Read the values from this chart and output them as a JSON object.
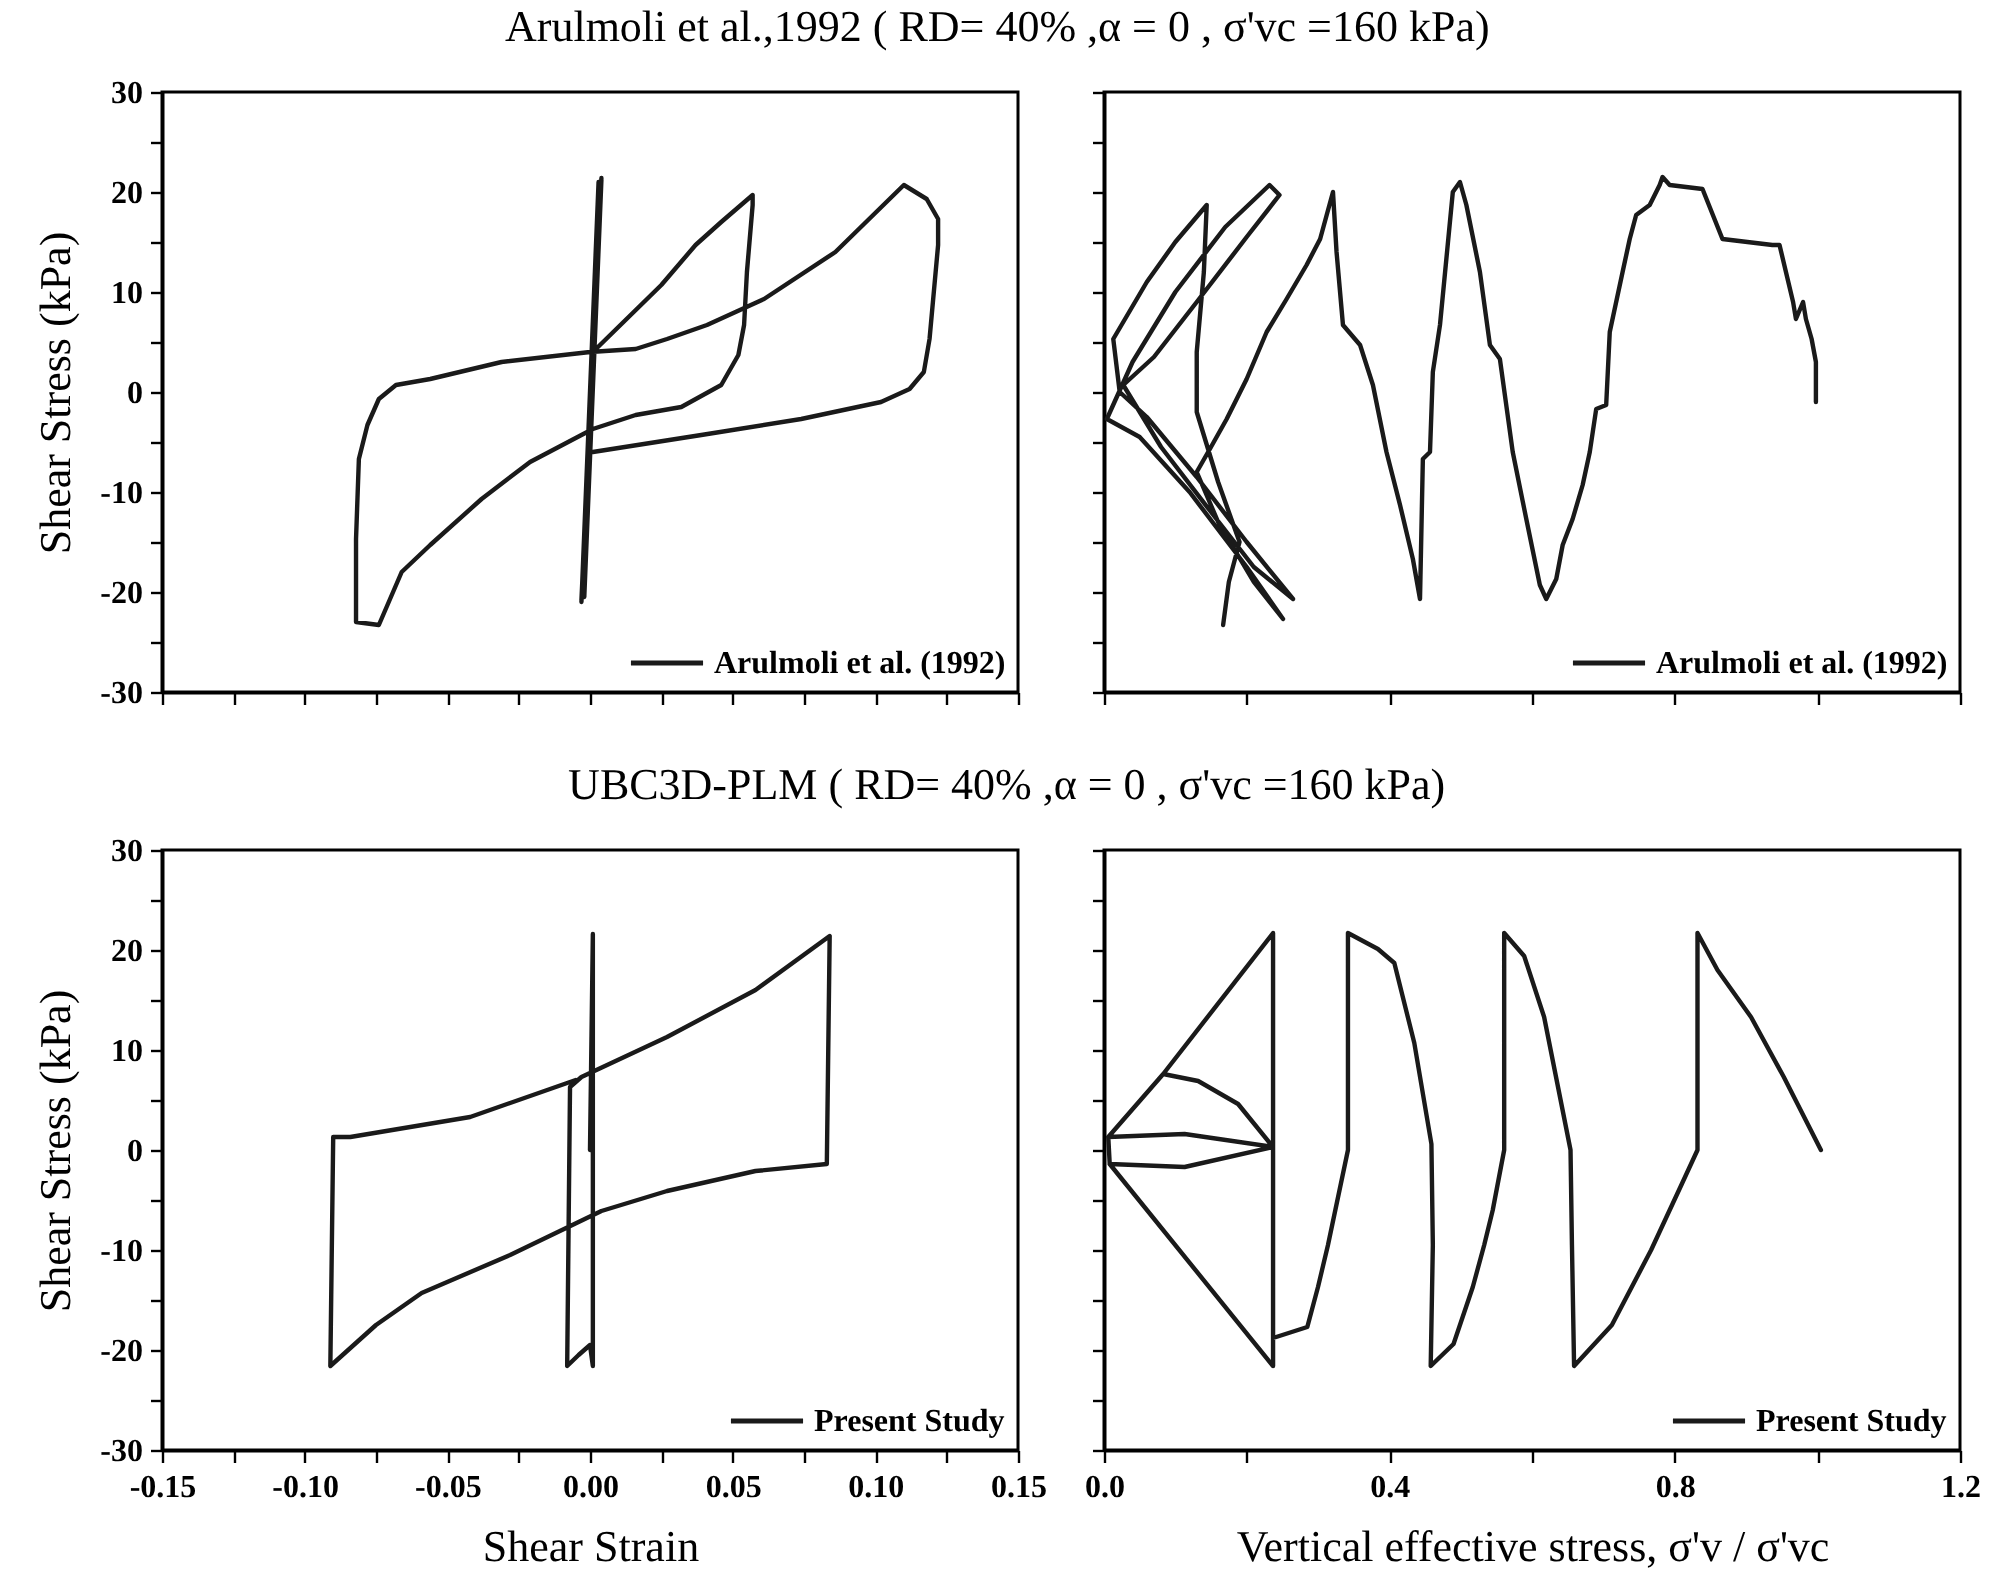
{
  "chart_data": [
    {
      "type": "line",
      "title": "Arulmoli et al.,1992 ( RD= 40% ,α = 0 , σ'vc =160 kPa)",
      "ylabel": "Shear Stress (kPa)",
      "xlim": [
        -0.15,
        0.15
      ],
      "xticks": [
        -0.15,
        -0.125,
        -0.1,
        -0.075,
        -0.05,
        -0.025,
        0,
        0.025,
        0.05,
        0.075,
        0.1,
        0.125,
        0.15
      ],
      "ylim": [
        -30,
        30
      ],
      "yticks": [
        -30,
        {
          "value": -25,
          "label": null
        },
        -20,
        {
          "value": -15,
          "label": null
        },
        -10,
        {
          "value": -5,
          "label": null
        },
        0,
        {
          "value": 5,
          "label": null
        },
        10,
        {
          "value": 15,
          "label": null
        },
        20,
        {
          "value": 25,
          "label": null
        },
        30
      ],
      "tick_labels": "y",
      "legend": "bottom right",
      "series": [
        {
          "name": "Arulmoli et al. (1992)",
          "color": "#1a1a1a",
          "x": [
            0,
            0.004,
            -0.003,
            0.003,
            -0.002,
            0.004,
            -0.003,
            0.001,
            0.025,
            0.037,
            0.046,
            0.057,
            0.057,
            0.055,
            0.054,
            0.052,
            0.046,
            0.032,
            0.016,
            0.001,
            -0.021,
            -0.038,
            -0.056,
            -0.066,
            -0.074,
            -0.082,
            -0.082,
            -0.081,
            -0.078,
            -0.074,
            -0.068,
            -0.056,
            -0.031,
            0,
            0.016,
            0.027,
            0.041,
            0.061,
            0.086,
            0.11,
            0.118,
            0.122,
            0.122,
            0.119,
            0.117,
            0.112,
            0.102,
            0.074,
            0.039,
            0.001
          ],
          "values": [
            0,
            21.4,
            -21,
            21,
            -20.5,
            21.2,
            -20.8,
            4,
            10.7,
            14.7,
            17,
            19.7,
            18.7,
            12,
            6.7,
            3.7,
            0.7,
            -1.5,
            -2.3,
            -3.7,
            -7,
            -10.7,
            -15.3,
            -18,
            -23.3,
            -23,
            -14.7,
            -6.7,
            -3.3,
            -0.7,
            0.7,
            1.3,
            3,
            4,
            4.3,
            5.3,
            6.7,
            9.3,
            14,
            20.7,
            19.3,
            17.3,
            14.7,
            5.3,
            2,
            0.3,
            -1,
            -2.7,
            -4.3,
            -6
          ]
        }
      ]
    },
    {
      "type": "line",
      "xlim": [
        0,
        1.2
      ],
      "xticks": [
        0,
        0.2,
        0.4,
        0.6,
        0.8,
        1.0,
        1.2
      ],
      "ylim": [
        -30,
        30
      ],
      "yticks": [
        -30,
        -25,
        -20,
        -15,
        -10,
        -5,
        0,
        5,
        10,
        15,
        20,
        25,
        30
      ],
      "tick_labels": false,
      "legend": "bottom right",
      "series": [
        {
          "name": "Arulmoli et al. (1992)",
          "color": "#1a1a1a",
          "x": [
            0.998,
            0.998,
            0.992,
            0.984,
            0.98,
            0.97,
            0.966,
            0.947,
            0.937,
            0.867,
            0.839,
            0.793,
            0.783,
            0.779,
            0.765,
            0.746,
            0.737,
            0.727,
            0.709,
            0.704,
            0.69,
            0.681,
            0.671,
            0.657,
            0.643,
            0.634,
            0.62,
            0.611,
            0.592,
            0.573,
            0.555,
            0.541,
            0.527,
            0.508,
            0.499,
            0.489,
            0.471,
            0.461,
            0.457,
            0.447,
            0.443,
            0.433,
            0.415,
            0.396,
            0.377,
            0.359,
            0.335,
            0.326,
            0.321,
            0.303,
            0.284,
            0.256,
            0.228,
            0.2,
            0.172,
            0.15,
            0.13,
            0.16,
            0.21,
            0.251,
            0.2,
            0.12,
            0.05,
            0.004,
            0.04,
            0.1,
            0.17,
            0.232,
            0.246,
            0.2,
            0.13,
            0.07,
            0.027,
            0.08,
            0.15,
            0.21,
            0.265,
            0.2,
            0.13,
            0.06,
            0.022,
            0.013,
            0.06,
            0.1,
            0.144,
            0.14,
            0.13,
            0.13,
            0.16,
            0.19,
            0.175,
            0.167
          ],
          "values": [
            -1,
            3,
            5.3,
            7.3,
            9,
            7.3,
            9,
            14.7,
            14.7,
            15.3,
            20.3,
            20.7,
            21.5,
            20.7,
            18.7,
            17.7,
            15.3,
            12,
            6,
            -1.3,
            -1.7,
            -6,
            -9.3,
            -12.7,
            -15.3,
            -18.7,
            -20.7,
            -19.3,
            -12.7,
            -6,
            3.3,
            4.7,
            12,
            18.7,
            21,
            20,
            6.7,
            2,
            -6,
            -6.7,
            -20.7,
            -16.7,
            -11.3,
            -6,
            0.7,
            4.7,
            6.7,
            14,
            20,
            15.3,
            12.7,
            9.3,
            6,
            1.3,
            -2.7,
            -5.5,
            -8,
            -13,
            -19,
            -22.7,
            -17.5,
            -10,
            -4.5,
            -2.7,
            3,
            10,
            16.5,
            20.7,
            19.7,
            15.5,
            9,
            3.5,
            0.7,
            -5.5,
            -12,
            -17.5,
            -20.7,
            -15,
            -8.5,
            -2.5,
            0,
            5.3,
            11,
            15,
            18.7,
            12,
            4,
            -2,
            -9,
            -15,
            -19,
            -23.3
          ]
        }
      ]
    },
    {
      "type": "line",
      "title": "UBC3D-PLM ( RD= 40% ,α = 0 , σ'vc =160 kPa)",
      "xlabel": "Shear Strain",
      "ylabel": "Shear Stress (kPa)",
      "xlim": [
        -0.15,
        0.15
      ],
      "xticks": [
        {
          "value": -0.15,
          "label": "-0.15"
        },
        {
          "value": -0.125,
          "label": null
        },
        {
          "value": -0.1,
          "label": "-0.10"
        },
        {
          "value": -0.075,
          "label": null
        },
        {
          "value": -0.05,
          "label": "-0.05"
        },
        {
          "value": -0.025,
          "label": null
        },
        {
          "value": 0,
          "label": "0.00"
        },
        {
          "value": 0.025,
          "label": null
        },
        {
          "value": 0.05,
          "label": "0.05"
        },
        {
          "value": 0.075,
          "label": null
        },
        {
          "value": 0.1,
          "label": "0.10"
        },
        {
          "value": 0.125,
          "label": null
        },
        {
          "value": 0.15,
          "label": "0.15"
        }
      ],
      "ylim": [
        -30,
        30
      ],
      "yticks": [
        -30,
        {
          "value": -25,
          "label": null
        },
        -20,
        {
          "value": -15,
          "label": null
        },
        -10,
        {
          "value": -5,
          "label": null
        },
        0,
        {
          "value": 5,
          "label": null
        },
        10,
        {
          "value": 15,
          "label": null
        },
        20,
        {
          "value": 25,
          "label": null
        },
        30
      ],
      "legend": "bottom right",
      "series": [
        {
          "name": "Present Study",
          "color": "#1a1a1a",
          "x": [
            0,
            0.001,
            0.001,
            0,
            -0.004,
            -0.008,
            -0.007,
            -0.003,
            0.027,
            0.058,
            0.084,
            0.083,
            0.058,
            0.027,
            0.004,
            -0.028,
            -0.059,
            -0.075,
            -0.091,
            -0.09,
            -0.084,
            -0.042,
            -0.005
          ],
          "values": [
            0,
            21.6,
            -21.6,
            -19.5,
            -20.5,
            -21.6,
            6.3,
            7.3,
            11.3,
            16,
            21.4,
            -1.4,
            -2.1,
            -4.1,
            -6.1,
            -10.5,
            -14.3,
            -17.5,
            -21.6,
            1.3,
            1.3,
            3.3,
            7
          ]
        }
      ]
    },
    {
      "type": "line",
      "xlabel": "Vertical effective stress, σ'v / σ'vc",
      "xlim": [
        0,
        1.2
      ],
      "xticks": [
        {
          "value": 0,
          "label": "0.0"
        },
        {
          "value": 0.2,
          "label": null
        },
        {
          "value": 0.4,
          "label": "0.4"
        },
        {
          "value": 0.6,
          "label": null
        },
        {
          "value": 0.8,
          "label": "0.8"
        },
        {
          "value": 1.0,
          "label": null
        },
        {
          "value": 1.2,
          "label": "1.2"
        }
      ],
      "ylim": [
        -30,
        30
      ],
      "yticks": [
        -30,
        -25,
        -20,
        -15,
        -10,
        -5,
        0,
        5,
        10,
        15,
        20,
        25,
        30
      ],
      "tick_labels": "x",
      "legend": "bottom right",
      "series": [
        {
          "name": "Present Study",
          "color": "#1a1a1a",
          "x": [
            1.005,
            0.953,
            0.907,
            0.86,
            0.832,
            0.832,
            0.81,
            0.767,
            0.712,
            0.659,
            0.656,
            0.654,
            0.617,
            0.589,
            0.561,
            0.561,
            0.545,
            0.533,
            0.517,
            0.49,
            0.458,
            0.461,
            0.459,
            0.435,
            0.407,
            0.384,
            0.342,
            0.342,
            0.314,
            0.3,
            0.285,
            0.237,
            0.237,
            0.083,
            0.006,
            0.113,
            0.237,
            0.188,
            0.132,
            0.083,
            0.006,
            0.008,
            0.113,
            0.237,
            0.237,
            0.008
          ],
          "values": [
            0,
            7.3,
            13.3,
            18,
            21.7,
            0,
            -3.4,
            -10,
            -17.5,
            -21.6,
            -9.5,
            0,
            13.3,
            19.4,
            21.7,
            0,
            -6,
            -9.5,
            -13.7,
            -19.4,
            -21.6,
            -9.5,
            0.6,
            10.7,
            18.7,
            20.1,
            21.7,
            0,
            -9.5,
            -13.7,
            -17.7,
            -18.8,
            21.7,
            7.6,
            1.3,
            1.6,
            0.3,
            4.6,
            6.9,
            7.6,
            1.3,
            -1.4,
            -1.7,
            0.3,
            -21.6,
            -1.4
          ]
        }
      ]
    }
  ]
}
